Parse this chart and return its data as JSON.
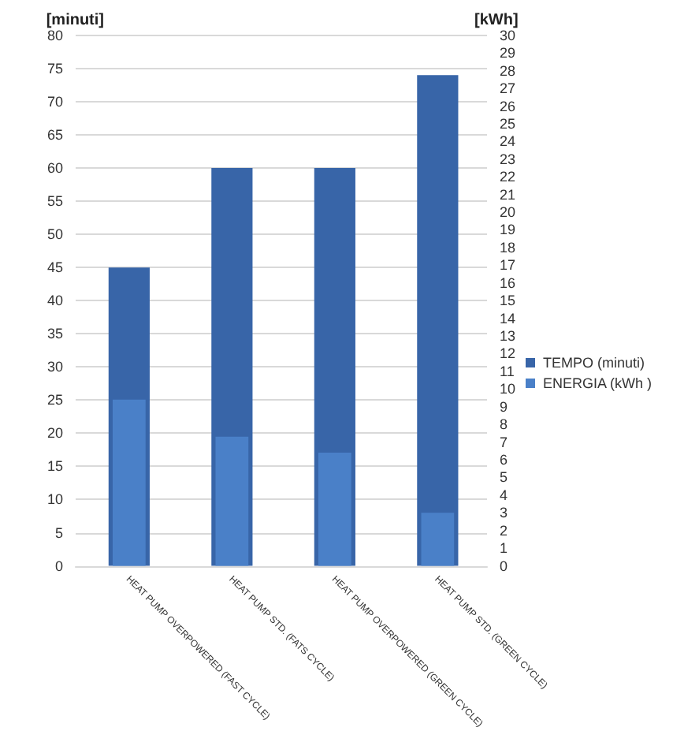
{
  "chart_data": {
    "type": "bar",
    "ylabel": "[minuti]",
    "y2label": "[kWh]",
    "categories": [
      "HEAT PUMP OVERPOWERED (FAST CYCLE)",
      "HEAT PUMP STD. (FATS CYCLE)",
      "HEAT PUMP OVERPOWERED (GREEN CYCLE)",
      "HEAT PUMP STD. (GREEN CYCLE)"
    ],
    "series": [
      {
        "name": "TEMPO (minuti)",
        "color": "#3865a8",
        "values": [
          45,
          60,
          60,
          74
        ]
      },
      {
        "name": "ENERGIA (kWh )",
        "color": "#4a80c8",
        "values": [
          9.4,
          7.3,
          6.4,
          3.0
        ],
        "axis": "y2"
      }
    ],
    "ylim": [
      0,
      80
    ],
    "yticks": [
      0,
      5,
      10,
      15,
      20,
      25,
      30,
      35,
      40,
      45,
      50,
      55,
      60,
      65,
      70,
      75,
      80
    ],
    "y2lim": [
      0,
      30
    ],
    "y2ticks": [
      0,
      1,
      2,
      3,
      4,
      5,
      6,
      7,
      8,
      9,
      10,
      11,
      12,
      13,
      14,
      15,
      16,
      17,
      18,
      19,
      20,
      21,
      22,
      23,
      24,
      25,
      26,
      27,
      28,
      29,
      30
    ],
    "grid": "y",
    "legend": "right"
  }
}
